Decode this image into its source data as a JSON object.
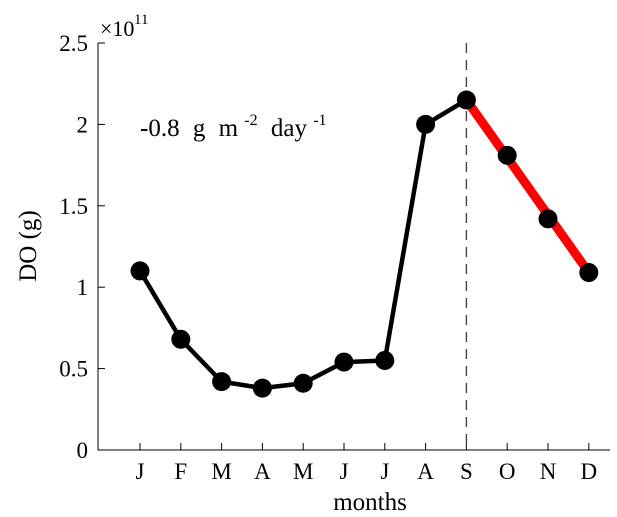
{
  "chart_data": {
    "type": "line",
    "title": "",
    "xlabel": "months",
    "ylabel": "DO (g)",
    "ylim": [
      0,
      2.5
    ],
    "y_ticks": [
      "0",
      "0.5",
      "1",
      "1.5",
      "2",
      "2.5"
    ],
    "y_tick_values": [
      0,
      0.5,
      1,
      1.5,
      2,
      2.5
    ],
    "y_exponent_base": "×10",
    "y_exponent_power": "11",
    "categories": [
      "J",
      "F",
      "M",
      "A",
      "M",
      "J",
      "J",
      "A",
      "S",
      "O",
      "N",
      "D"
    ],
    "series": [
      {
        "color": "#000000",
        "values": [
          1.1,
          0.68,
          0.42,
          0.38,
          0.41,
          0.54,
          0.55,
          2.0,
          2.15,
          1.81,
          1.42,
          1.09
        ]
      }
    ],
    "trend": {
      "color": "#ff0000",
      "from_index": 8,
      "to_index": 11,
      "y_start": 2.15,
      "y_end": 1.09
    },
    "vertical_marker": {
      "index": 8,
      "style": "dashed"
    },
    "annotation": {
      "value": "-0.8",
      "unit_g": "g",
      "unit_m": "m",
      "exp_m": "-2",
      "unit_day": "day",
      "exp_day": "-1"
    },
    "grid": false
  }
}
